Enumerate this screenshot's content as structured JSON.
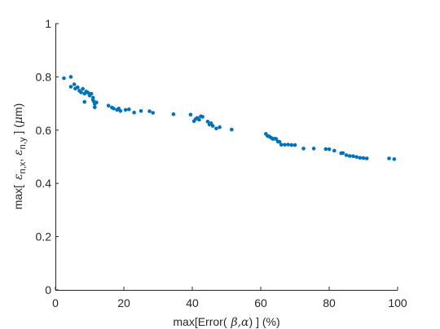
{
  "chart_data": {
    "type": "scatter",
    "xlabel": {
      "pre": "max[Error(",
      "beta": "β",
      "comma": ",",
      "alpha": "α",
      "post": ") ] (%)"
    },
    "ylabel": {
      "pre": "max[",
      "eps1": "ε",
      "sub1": "n,x",
      "comma": ",",
      "eps2": "ε",
      "sub2": "n,y",
      "mid": "] (",
      "mu": "μ",
      "post": "m)"
    },
    "xlim": [
      0,
      100
    ],
    "ylim": [
      0,
      1
    ],
    "xticks": [
      0,
      20,
      40,
      60,
      80,
      100
    ],
    "yticks": [
      0,
      0.2,
      0.4,
      0.6,
      0.8,
      1
    ],
    "xtick_labels": [
      "0",
      "20",
      "40",
      "60",
      "80",
      "100"
    ],
    "ytick_labels": [
      "0",
      "0.2",
      "0.4",
      "0.6",
      "0.8",
      "1"
    ],
    "grid": false,
    "marker_color": "#0072bd",
    "x": [
      2.5,
      4.5,
      4.5,
      5.5,
      5.8,
      6.5,
      7,
      7.5,
      8,
      8.5,
      9,
      9.5,
      10,
      10.5,
      11,
      11,
      11.3,
      11.5,
      12,
      8.5,
      11.5,
      15.5,
      16.5,
      17,
      18,
      18.5,
      19,
      20.5,
      21.5,
      23,
      25,
      27.5,
      28.5,
      34.5,
      39.5,
      40.5,
      41,
      41.5,
      42,
      42.5,
      43,
      44.5,
      45,
      45.5,
      46,
      47,
      48,
      51.5,
      61.5,
      62,
      62.5,
      63,
      63.5,
      64,
      64.5,
      65,
      65.5,
      66,
      67,
      68,
      69,
      70,
      72.5,
      75.5,
      79,
      80,
      81.5,
      83.5,
      84,
      85,
      86,
      87,
      88,
      89,
      90,
      91,
      97.5,
      99
    ],
    "y": [
      0.795,
      0.8,
      0.763,
      0.772,
      0.756,
      0.761,
      0.748,
      0.742,
      0.755,
      0.737,
      0.745,
      0.741,
      0.73,
      0.737,
      0.722,
      0.713,
      0.706,
      0.698,
      0.704,
      0.706,
      0.686,
      0.692,
      0.685,
      0.681,
      0.676,
      0.681,
      0.672,
      0.676,
      0.678,
      0.666,
      0.672,
      0.671,
      0.665,
      0.66,
      0.658,
      0.634,
      0.642,
      0.646,
      0.639,
      0.652,
      0.65,
      0.632,
      0.621,
      0.626,
      0.616,
      0.606,
      0.611,
      0.602,
      0.586,
      0.578,
      0.576,
      0.572,
      0.567,
      0.568,
      0.567,
      0.557,
      0.556,
      0.545,
      0.545,
      0.546,
      0.544,
      0.544,
      0.531,
      0.531,
      0.529,
      0.528,
      0.523,
      0.513,
      0.514,
      0.506,
      0.503,
      0.502,
      0.499,
      0.496,
      0.495,
      0.494,
      0.494,
      0.491
    ]
  }
}
